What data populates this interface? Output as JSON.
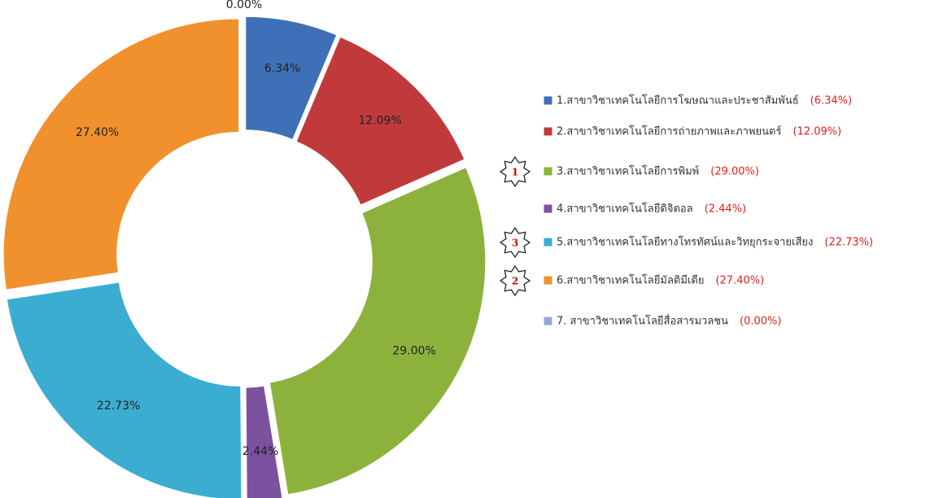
{
  "chart_data": {
    "type": "donut",
    "categories": [
      "1.สาขาวิชาเทคโนโลยีการโฆษณาและประชาสัมพันธ์",
      "2.สาขาวิชาเทคโนโลยีการถ่ายภาพและภาพยนตร์",
      "3.สาขาวิชาเทคโนโลยีการพิมพ์",
      "4.สาขาวิชาเทคโนโลยีดิจิตอล",
      "5.สาขาวิชาเทคโนโลยีทางโทรทัศน์และวิทยุกระจายเสียง",
      "6.สาขาวิชาเทคโนโลยีมัลติมีเดีย",
      "7. สาขาวิชาเทคโนโลยีสื่อสารมวลชน"
    ],
    "values": [
      6.34,
      12.09,
      29.0,
      2.44,
      22.73,
      27.4,
      0.0
    ],
    "value_labels": [
      "6.34%",
      "12.09%",
      "29.00%",
      "2.44%",
      "22.73%",
      "27.40%",
      "0.00%"
    ],
    "legend_value_labels": [
      "(6.34%)",
      "(12.09%)",
      "(29.00%)",
      "(2.44%)",
      "(22.73%)",
      "(27.40%)",
      "(0.00%)"
    ],
    "ranks": [
      null,
      null,
      1,
      null,
      3,
      2,
      null
    ],
    "colors": [
      "#3d70b6",
      "#c03a3c",
      "#8db23c",
      "#7b51a0",
      "#3badd1",
      "#f0912e",
      "#93aad6"
    ],
    "legend": "right"
  }
}
